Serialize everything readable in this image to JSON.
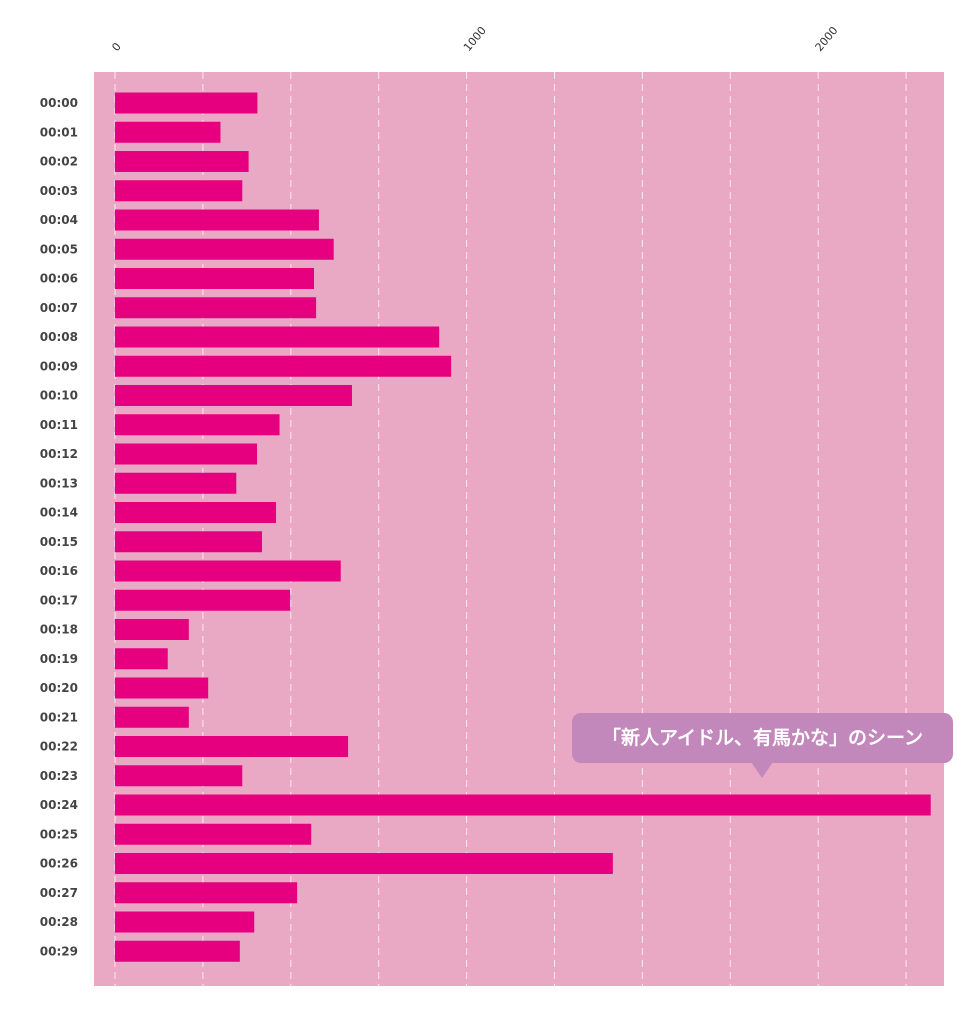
{
  "chart_data": {
    "type": "bar",
    "orientation": "horizontal",
    "title": "",
    "xlabel": "",
    "ylabel": "",
    "xlim": [
      0,
      2350
    ],
    "x_ticks": [
      0,
      1000,
      2000
    ],
    "x_tick_labels": [
      "0",
      "1000",
      "2000"
    ],
    "grid": true,
    "gridline_values": [
      0,
      250,
      500,
      750,
      1000,
      1250,
      1500,
      1750,
      2000,
      2250
    ],
    "categories": [
      "00:00",
      "00:01",
      "00:02",
      "00:03",
      "00:04",
      "00:05",
      "00:06",
      "00:07",
      "00:08",
      "00:09",
      "00:10",
      "00:11",
      "00:12",
      "00:13",
      "00:14",
      "00:15",
      "00:16",
      "00:17",
      "00:18",
      "00:19",
      "00:20",
      "00:21",
      "00:22",
      "00:23",
      "00:24",
      "00:25",
      "00:26",
      "00:27",
      "00:28",
      "00:29"
    ],
    "values": [
      405,
      300,
      380,
      362,
      580,
      622,
      566,
      572,
      922,
      956,
      674,
      468,
      404,
      345,
      458,
      418,
      642,
      498,
      210,
      150,
      265,
      210,
      663,
      362,
      2320,
      558,
      1416,
      518,
      396,
      355
    ],
    "annotation": {
      "text": "「新人アイドル、有馬かな」のシーン",
      "target_category": "00:24"
    },
    "colors": {
      "plot_background": "#e9a9c5",
      "bar": "#e6007f",
      "gridline": "#ffffff",
      "annotation_background": "#c287bb",
      "annotation_text": "#ffffff",
      "category_label": "#444444",
      "tick_label": "#333333"
    }
  }
}
